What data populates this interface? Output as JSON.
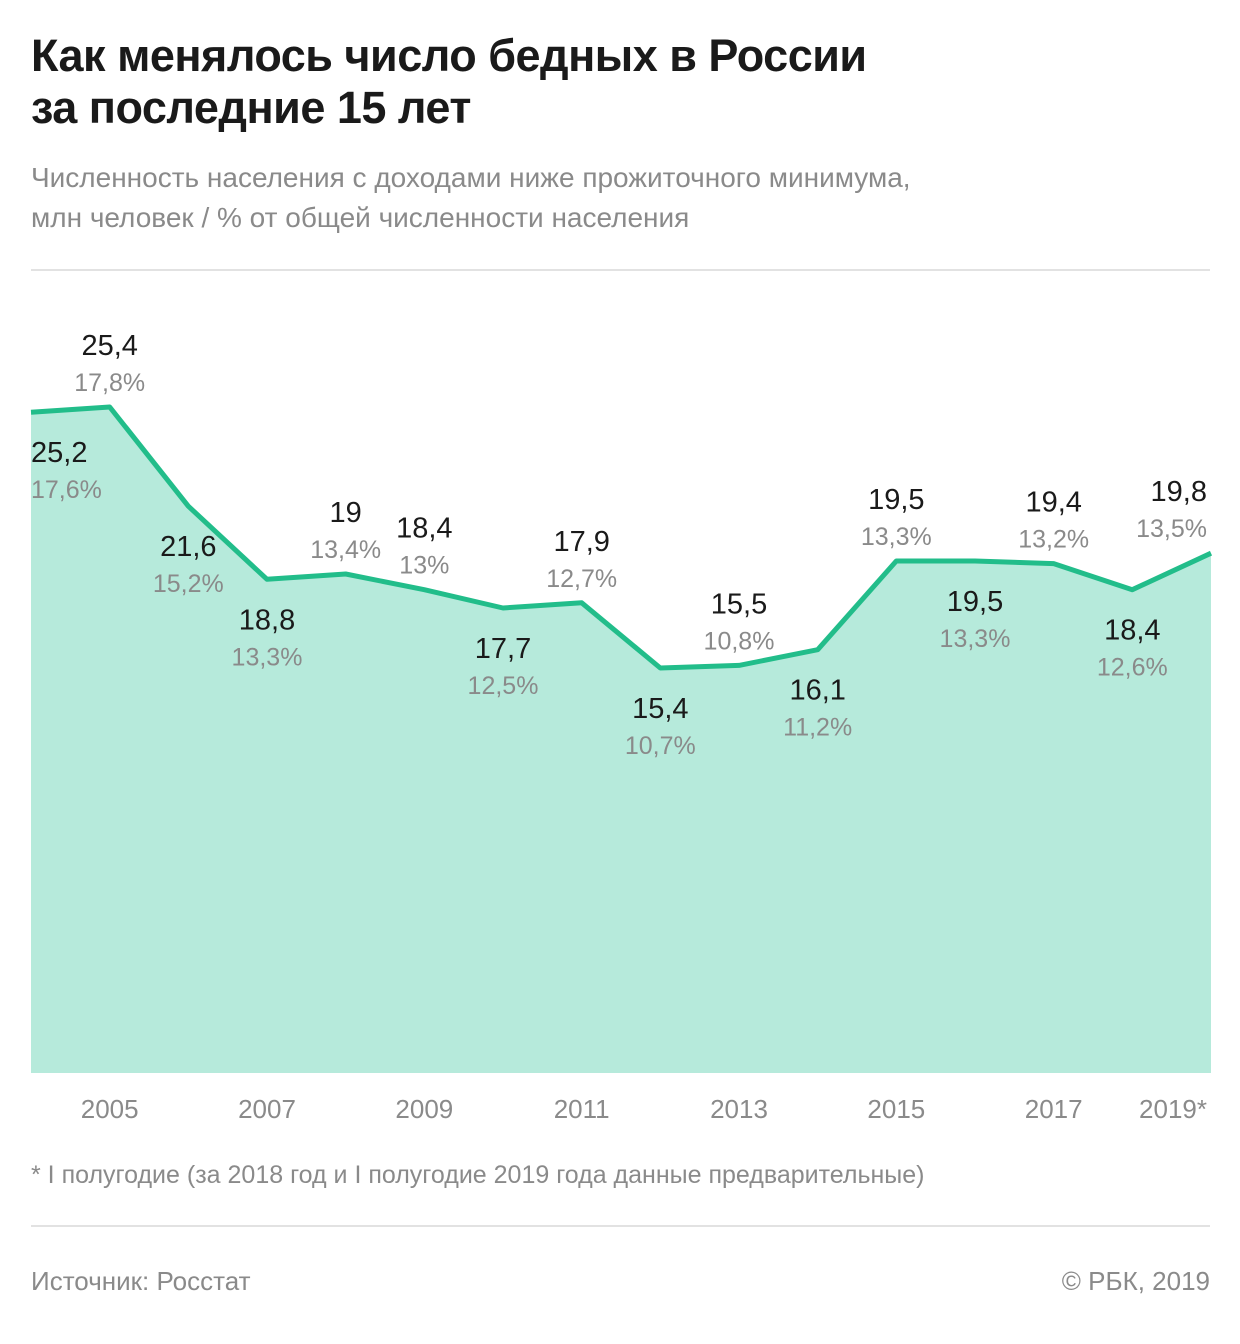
{
  "header": {
    "title_lines": [
      "Как менялось число бедных в России",
      "за последние 15 лет"
    ],
    "subtitle_lines": [
      "Численность населения с доходами ниже прожиточного минимума,",
      "млн человек / % от общей численности населения"
    ]
  },
  "footer": {
    "footnote": "* I полугодие (за 2018 год и I полугодие 2019 года данные предварительные)",
    "source": "Источник: Росстат",
    "credit": "© РБК, 2019"
  },
  "colors": {
    "line": "#22bd8a",
    "area": "#b6eadb",
    "value_text": "#1a1a1a",
    "percent_text": "#8a8a8a",
    "axis_text": "#8a8a8a"
  },
  "chart_data": {
    "type": "area",
    "title": "Как менялось число бедных в России за последние 15 лет",
    "subtitle": "Численность населения с доходами ниже прожиточного минимума, млн человек / % от общей численности населения",
    "x": [
      "2004",
      "2005",
      "2006",
      "2007",
      "2008",
      "2009",
      "2010",
      "2011",
      "2012",
      "2013",
      "2014",
      "2015",
      "2016",
      "2017",
      "2018",
      "2019*"
    ],
    "x_tick_labels": [
      "",
      "2005",
      "",
      "2007",
      "",
      "2009",
      "",
      "2011",
      "",
      "2013",
      "",
      "2015",
      "",
      "2017",
      "",
      "2019*"
    ],
    "series": [
      {
        "values": [
          25.2,
          25.4,
          21.6,
          18.8,
          19,
          18.4,
          17.7,
          17.9,
          15.4,
          15.5,
          16.1,
          19.5,
          19.5,
          19.4,
          18.4,
          19.8
        ],
        "value_labels": [
          "25,2",
          "25,4",
          "21,6",
          "18,8",
          "19",
          "18,4",
          "17,7",
          "17,9",
          "15,4",
          "15,5",
          "16,1",
          "19,5",
          "19,5",
          "19,4",
          "18,4",
          "19,8"
        ],
        "percent_labels": [
          "17,6%",
          "17,8%",
          "15,2%",
          "13,3%",
          "13,4%",
          "13%",
          "12,5%",
          "12,7%",
          "10,7%",
          "10,8%",
          "11,2%",
          "13,3%",
          "13,3%",
          "13,2%",
          "12,6%",
          "13,5%"
        ],
        "label_positions": [
          "below",
          "above",
          "below",
          "below",
          "above",
          "above",
          "below",
          "above",
          "below",
          "above",
          "below",
          "above",
          "below",
          "above",
          "below",
          "above"
        ]
      }
    ],
    "ylim": [
      0,
      25.4
    ],
    "grid": false,
    "legend": "none"
  }
}
